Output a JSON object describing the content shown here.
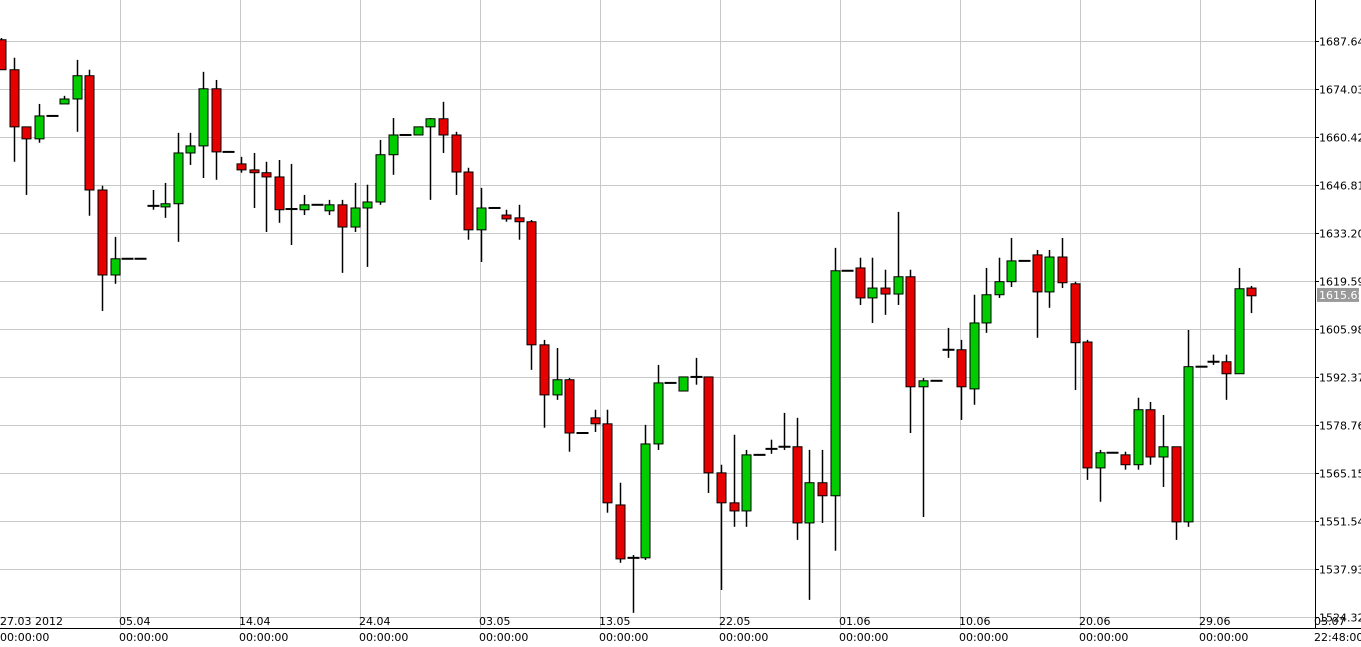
{
  "chart_data": {
    "type": "candlestick",
    "up_color": "#00cc00",
    "down_color": "#e60000",
    "grid": true,
    "ylim": [
      1521.21,
      1699.27
    ],
    "yticks": [
      1687.64,
      1674.03,
      1660.42,
      1646.81,
      {
        "value": 1633.2,
        "label": "1633.20"
      },
      1619.59,
      1605.98,
      1592.37,
      1578.76,
      1565.15,
      1551.54,
      1537.93,
      1524.32
    ],
    "last_price": 1615.65,
    "x_labels": [
      {
        "date": "27.03 2012",
        "time": "00:00:00"
      },
      {
        "date": "05.04",
        "time": "00:00:00"
      },
      {
        "date": "14.04",
        "time": "00:00:00"
      },
      {
        "date": "24.04",
        "time": "00:00:00"
      },
      {
        "date": "03.05",
        "time": "00:00:00"
      },
      {
        "date": "13.05",
        "time": "00:00:00"
      },
      {
        "date": "22.05",
        "time": "00:00:00"
      },
      {
        "date": "01.06",
        "time": "00:00:00"
      },
      {
        "date": "10.06",
        "time": "00:00:00"
      },
      {
        "date": "20.06",
        "time": "00:00:00"
      },
      {
        "date": "29.06",
        "time": "00:00:00"
      },
      {
        "date": "03.07",
        "time": "22:48:00"
      }
    ],
    "open": [
      1688.0,
      1679.5,
      1663.3,
      1659.9,
      1666.4,
      1669.8,
      1671.2,
      1677.8,
      1645.4,
      1621.3,
      1625.9,
      1625.9,
      1640.9,
      1640.6,
      1641.5,
      1655.9,
      1657.9,
      1674.1,
      1656.2,
      1652.8,
      1651.1,
      1650.3,
      1649.1,
      1640.0,
      1639.8,
      1641.2,
      1639.5,
      1641.2,
      1634.9,
      1640.3,
      1642.0,
      1655.4,
      1661.0,
      1661.0,
      1663.3,
      1665.6,
      1661.0,
      1650.5,
      1634.1,
      1640.3,
      1638.3,
      1637.5,
      1636.4,
      1601.5,
      1587.3,
      1591.6,
      1576.5,
      1580.8,
      1579.1,
      1556.1,
      1541.1,
      1541.1,
      1573.4,
      1590.7,
      1588.4,
      1592.4,
      1592.4,
      1565.2,
      1556.7,
      1554.4,
      1570.3,
      1572.0,
      1572.6,
      1572.6,
      1551.0,
      1562.4,
      1558.7,
      1622.5,
      1623.3,
      1614.8,
      1617.6,
      1615.9,
      1620.8,
      1589.6,
      1591.3,
      1600.1,
      1600.1,
      1589.0,
      1607.7,
      1615.7,
      1619.4,
      1625.3,
      1627.0,
      1616.5,
      1626.4,
      1618.8,
      1602.3,
      1566.6,
      1570.9,
      1570.3,
      1567.5,
      1583.1,
      1569.7,
      1572.6,
      1551.3,
      1595.3,
      1596.7,
      1596.7,
      1593.3,
      1617.6
    ],
    "high": [
      1688.5,
      1682.9,
      1663.3,
      1669.8,
      1666.4,
      1672.1,
      1682.3,
      1679.5,
      1646.6,
      1632.1,
      1625.9,
      1625.9,
      1645.4,
      1647.4,
      1661.6,
      1661.6,
      1678.9,
      1676.6,
      1656.2,
      1654.8,
      1655.9,
      1653.4,
      1653.9,
      1652.8,
      1644.0,
      1641.2,
      1642.6,
      1642.6,
      1647.4,
      1646.9,
      1659.6,
      1665.8,
      1661.0,
      1663.3,
      1665.8,
      1670.4,
      1661.9,
      1651.7,
      1646.0,
      1640.3,
      1639.8,
      1641.2,
      1636.9,
      1602.9,
      1600.6,
      1592.1,
      1576.5,
      1583.1,
      1583.1,
      1562.4,
      1541.9,
      1578.8,
      1595.8,
      1590.7,
      1592.4,
      1597.8,
      1592.4,
      1567.5,
      1576.0,
      1571.7,
      1570.3,
      1574.6,
      1582.2,
      1580.8,
      1571.7,
      1571.7,
      1629.0,
      1622.5,
      1626.2,
      1626.2,
      1622.8,
      1639.2,
      1622.8,
      1592.1,
      1591.3,
      1606.3,
      1602.9,
      1615.7,
      1623.3,
      1626.2,
      1631.8,
      1625.3,
      1628.4,
      1628.4,
      1631.8,
      1619.4,
      1602.9,
      1571.7,
      1570.9,
      1571.2,
      1586.5,
      1585.3,
      1581.6,
      1572.6,
      1605.7,
      1595.3,
      1598.7,
      1598.7,
      1623.3,
      1618.2
    ],
    "low": [
      1679.5,
      1653.4,
      1644.0,
      1658.8,
      1666.4,
      1669.8,
      1661.9,
      1638.1,
      1611.1,
      1618.8,
      1625.9,
      1625.9,
      1639.8,
      1637.5,
      1630.7,
      1652.5,
      1648.8,
      1648.3,
      1656.2,
      1650.3,
      1640.3,
      1633.5,
      1636.1,
      1629.8,
      1638.3,
      1641.2,
      1638.3,
      1621.9,
      1633.5,
      1623.6,
      1641.2,
      1649.7,
      1661.0,
      1661.0,
      1642.6,
      1655.9,
      1644.0,
      1631.3,
      1625.0,
      1640.3,
      1636.4,
      1631.3,
      1594.4,
      1578.0,
      1585.9,
      1571.2,
      1576.5,
      1576.8,
      1553.9,
      1539.7,
      1525.5,
      1540.5,
      1571.7,
      1590.7,
      1588.4,
      1590.2,
      1559.5,
      1532.0,
      1549.9,
      1549.9,
      1570.3,
      1570.6,
      1571.7,
      1546.2,
      1529.2,
      1551.0,
      1543.1,
      1622.5,
      1612.8,
      1607.7,
      1610.0,
      1612.8,
      1576.5,
      1552.7,
      1591.3,
      1597.8,
      1580.2,
      1584.5,
      1604.9,
      1614.8,
      1617.9,
      1625.3,
      1603.5,
      1612.0,
      1617.6,
      1588.7,
      1563.2,
      1557.0,
      1570.9,
      1566.1,
      1566.1,
      1567.5,
      1561.2,
      1546.2,
      1549.9,
      1595.3,
      1595.8,
      1585.9,
      1593.3,
      1610.5
    ],
    "close": [
      1679.5,
      1663.3,
      1659.9,
      1666.4,
      1666.4,
      1671.2,
      1677.8,
      1645.4,
      1621.3,
      1625.9,
      1625.9,
      1625.9,
      1640.9,
      1641.5,
      1655.9,
      1657.9,
      1674.1,
      1656.2,
      1656.2,
      1651.1,
      1650.3,
      1649.1,
      1639.8,
      1640.0,
      1641.2,
      1641.2,
      1641.2,
      1634.9,
      1640.3,
      1642.0,
      1655.4,
      1661.0,
      1661.0,
      1663.3,
      1665.6,
      1661.0,
      1650.5,
      1634.1,
      1640.3,
      1640.3,
      1637.2,
      1636.4,
      1601.5,
      1587.3,
      1591.6,
      1576.5,
      1576.5,
      1579.1,
      1556.7,
      1540.8,
      1541.1,
      1573.4,
      1590.7,
      1590.7,
      1592.4,
      1592.4,
      1565.2,
      1556.7,
      1554.4,
      1570.3,
      1570.3,
      1572.0,
      1572.6,
      1551.0,
      1562.4,
      1558.7,
      1622.5,
      1622.5,
      1614.8,
      1617.6,
      1615.9,
      1620.8,
      1589.6,
      1591.3,
      1591.3,
      1600.1,
      1589.6,
      1607.7,
      1615.7,
      1619.4,
      1625.3,
      1625.3,
      1616.5,
      1626.4,
      1619.1,
      1602.1,
      1566.6,
      1570.9,
      1570.9,
      1567.5,
      1583.1,
      1569.7,
      1572.6,
      1551.3,
      1595.3,
      1595.3,
      1596.7,
      1593.3,
      1617.4,
      1615.4
    ]
  }
}
